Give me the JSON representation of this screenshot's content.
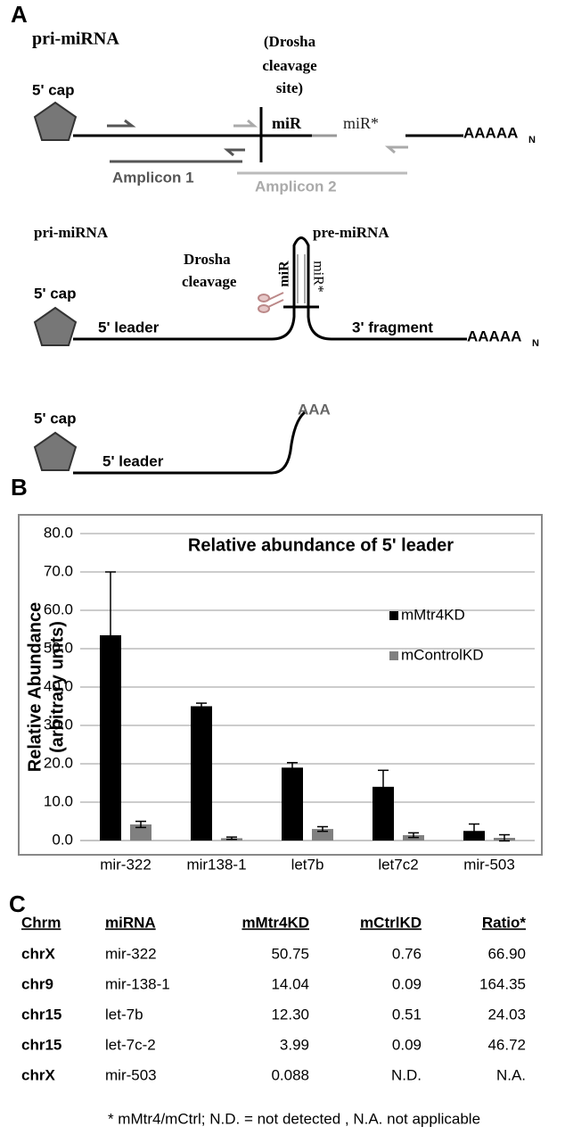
{
  "panel_labels": [
    "A",
    "B",
    "C"
  ],
  "diagram": {
    "top": {
      "title": "pri-miRNA",
      "cleavage_site": [
        "(Drosha",
        "cleavage",
        "site)"
      ],
      "cap": "5' cap",
      "mir": "miR",
      "mir_star": "miR*",
      "polya": "AAAAA",
      "polya_sub": "N",
      "amplicon1": "Amplicon 1",
      "amplicon2": "Amplicon 2"
    },
    "middle": {
      "title": "pri-miRNA",
      "pre": "pre-miRNA",
      "cleavage": [
        "Drosha",
        "cleavage"
      ],
      "cap": "5' cap",
      "mir": "miR",
      "mir_star": "miR*",
      "leader": "5' leader",
      "fragment": "3' fragment",
      "polya": "AAAAA",
      "polya_sub": "N"
    },
    "bottom": {
      "cap": "5' cap",
      "leader": "5' leader",
      "polya": "AAA"
    }
  },
  "chart_data": {
    "type": "bar",
    "title": "Relative abundance of 5' leader",
    "y_label": [
      "Relative Abundance",
      "(arbitrary units)"
    ],
    "categories": [
      "mir-322",
      "mir138-1",
      "let7b",
      "let7c2",
      "mir-503"
    ],
    "series": [
      {
        "name": "mMtr4KD",
        "color": "#000000",
        "values": [
          53.5,
          35,
          19,
          14,
          2.5
        ],
        "errors": [
          16.5,
          0.8,
          1.3,
          4.3,
          1.8
        ]
      },
      {
        "name": "mControlKD",
        "color": "#808080",
        "values": [
          4.2,
          0.6,
          3,
          1.4,
          0.7
        ],
        "errors": [
          0.8,
          0.3,
          0.6,
          0.6,
          0.8
        ]
      }
    ],
    "ylim": [
      0,
      80
    ],
    "yticks": [
      {
        "value": 0,
        "label": "0.0"
      },
      {
        "value": 10,
        "label": "10.0"
      },
      {
        "value": 20,
        "label": "20.0"
      },
      {
        "value": 30,
        "label": "30.0"
      },
      {
        "value": 40,
        "label": "40.0"
      },
      {
        "value": 50,
        "label": "50.0"
      },
      {
        "value": 60,
        "label": "60.0"
      },
      {
        "value": 70,
        "label": "70.0"
      },
      {
        "value": 80,
        "label": "80.0"
      }
    ],
    "grid": true,
    "legend": "right"
  },
  "table": {
    "header": [
      "Chrm",
      "miRNA",
      "mMtr4KD",
      "mCtrlKD",
      "Ratio*"
    ],
    "rows": [
      [
        "chrX",
        "mir-322",
        "50.75",
        "0.76",
        "66.90"
      ],
      [
        "chr9",
        "mir-138-1",
        "14.04",
        "0.09",
        "164.35"
      ],
      [
        "chr15",
        "let-7b",
        "12.30",
        "0.51",
        "24.03"
      ],
      [
        "chr15",
        "let-7c-2",
        "3.99",
        "0.09",
        "46.72"
      ],
      [
        "chrX",
        "mir-503",
        "0.088",
        "N.D.",
        "N.A."
      ]
    ],
    "footnote": "* mMtr4/mCtrl;  N.D. = not detected , N.A. not applicable"
  }
}
